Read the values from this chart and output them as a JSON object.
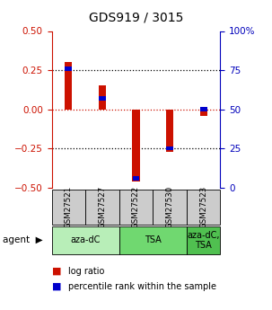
{
  "title": "GDS919 / 3015",
  "samples": [
    "GSM27521",
    "GSM27527",
    "GSM27522",
    "GSM27530",
    "GSM27523"
  ],
  "log_ratio": [
    0.3,
    0.15,
    -0.46,
    -0.27,
    -0.04
  ],
  "percentile_rank": [
    0.76,
    0.57,
    0.06,
    0.25,
    0.5
  ],
  "ylim": [
    -0.5,
    0.5
  ],
  "right_ylim": [
    0,
    100
  ],
  "yticks_left": [
    -0.5,
    -0.25,
    0,
    0.25,
    0.5
  ],
  "yticks_right": [
    0,
    25,
    50,
    75,
    100
  ],
  "groups": [
    {
      "label": "aza-dC",
      "span": [
        0,
        2
      ],
      "color": "#b8eeb8"
    },
    {
      "label": "TSA",
      "span": [
        2,
        4
      ],
      "color": "#70d870"
    },
    {
      "label": "aza-dC,\nTSA",
      "span": [
        4,
        5
      ],
      "color": "#50c050"
    }
  ],
  "red_color": "#cc1100",
  "blue_color": "#0000cc",
  "background_color": "#ffffff",
  "tick_color_left": "#cc1100",
  "tick_color_right": "#0000bb",
  "sample_box_color": "#cccccc"
}
